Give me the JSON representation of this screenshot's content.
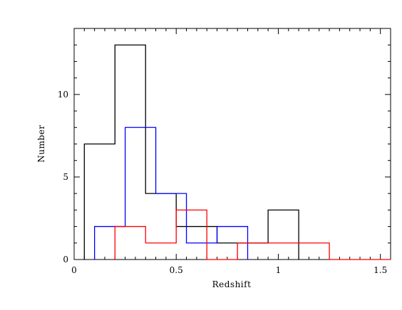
{
  "chart_data": {
    "type": "histogram",
    "title": "",
    "xlabel": "Redshift",
    "ylabel": "Number",
    "xlim": [
      0,
      1.55
    ],
    "ylim": [
      0,
      14
    ],
    "grid": false,
    "legend": "none",
    "x_ticks": {
      "major": [
        0,
        0.5,
        1,
        1.5
      ],
      "labels": [
        "0",
        "0.5",
        "1",
        "1.5"
      ],
      "minor_step": 0.05
    },
    "y_ticks": {
      "major": [
        0,
        5,
        10
      ],
      "labels": [
        "0",
        "5",
        "10"
      ],
      "minor_step": 1
    },
    "series": [
      {
        "color": "#000000",
        "bins": [
          {
            "x0": 0.05,
            "x1": 0.2,
            "value": 7
          },
          {
            "x0": 0.2,
            "x1": 0.35,
            "value": 13
          },
          {
            "x0": 0.35,
            "x1": 0.5,
            "value": 4
          },
          {
            "x0": 0.5,
            "x1": 0.7,
            "value": 2
          },
          {
            "x0": 0.7,
            "x1": 0.95,
            "value": 1
          },
          {
            "x0": 0.95,
            "x1": 1.1,
            "value": 3
          }
        ]
      },
      {
        "color": "#0000ff",
        "bins": [
          {
            "x0": 0.1,
            "x1": 0.25,
            "value": 2
          },
          {
            "x0": 0.25,
            "x1": 0.4,
            "value": 8
          },
          {
            "x0": 0.4,
            "x1": 0.55,
            "value": 4
          },
          {
            "x0": 0.55,
            "x1": 0.7,
            "value": 1
          },
          {
            "x0": 0.7,
            "x1": 0.85,
            "value": 2
          }
        ]
      },
      {
        "color": "#ff0000",
        "bins": [
          {
            "x0": 0.2,
            "x1": 0.35,
            "value": 2
          },
          {
            "x0": 0.35,
            "x1": 0.5,
            "value": 1
          },
          {
            "x0": 0.5,
            "x1": 0.65,
            "value": 3
          },
          {
            "x0": 0.65,
            "x1": 0.8,
            "value": 0
          },
          {
            "x0": 0.8,
            "x1": 1.25,
            "value": 1
          },
          {
            "x0": 1.25,
            "x1": 1.55,
            "value": 0
          }
        ]
      }
    ]
  }
}
